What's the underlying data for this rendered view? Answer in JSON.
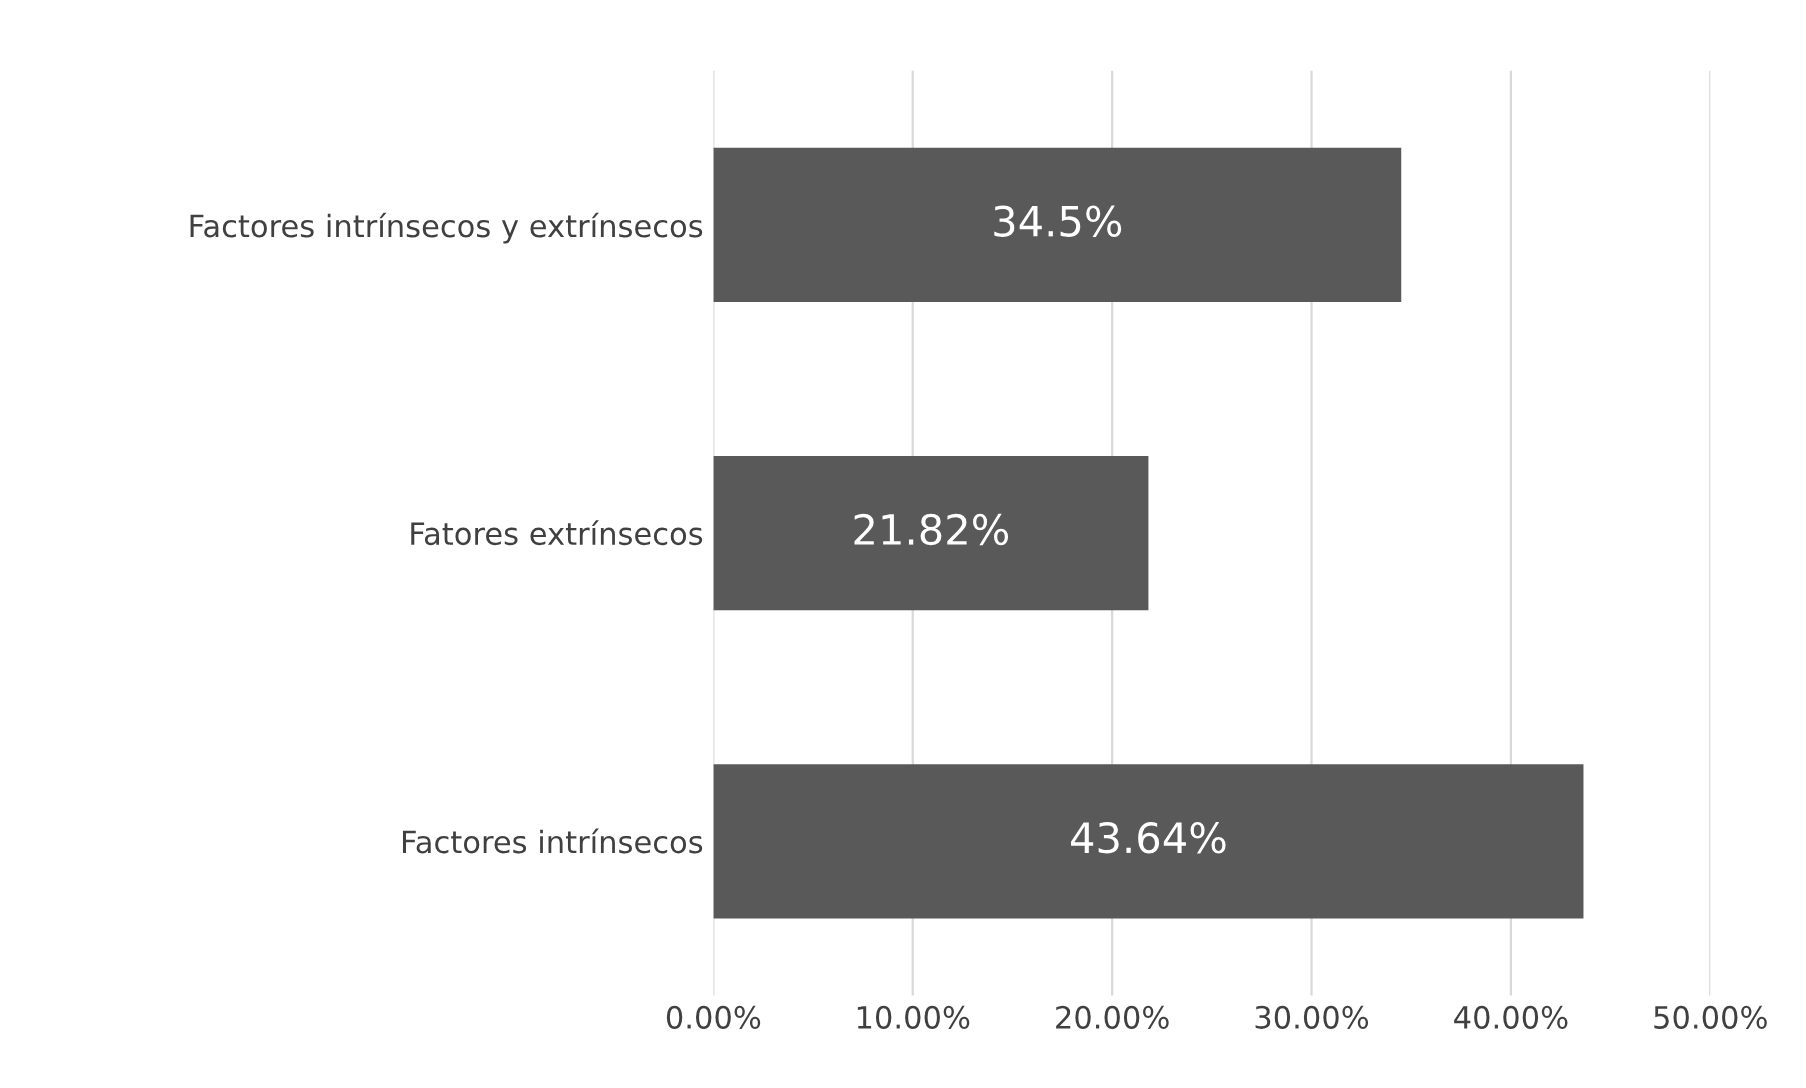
{
  "chart_data": {
    "type": "bar",
    "orientation": "horizontal",
    "categories": [
      "Factores intrínsecos y extrínsecos",
      "Fatores extrínsecos",
      "Factores intrínsecos"
    ],
    "values": [
      34.5,
      21.82,
      43.64
    ],
    "color": "#595959",
    "value_labels": [
      "34.5%",
      "21.82%",
      "43.64%"
    ],
    "xlim": [
      0,
      50
    ],
    "xticks": [
      {
        "value": 0,
        "label": "0.00%"
      },
      {
        "value": 10,
        "label": "10.00%"
      },
      {
        "value": 20,
        "label": "20.00%"
      },
      {
        "value": 30,
        "label": "30.00%"
      },
      {
        "value": 40,
        "label": "40.00%"
      },
      {
        "value": 50,
        "label": "50.00%"
      }
    ],
    "grid": "x",
    "legend": false
  }
}
